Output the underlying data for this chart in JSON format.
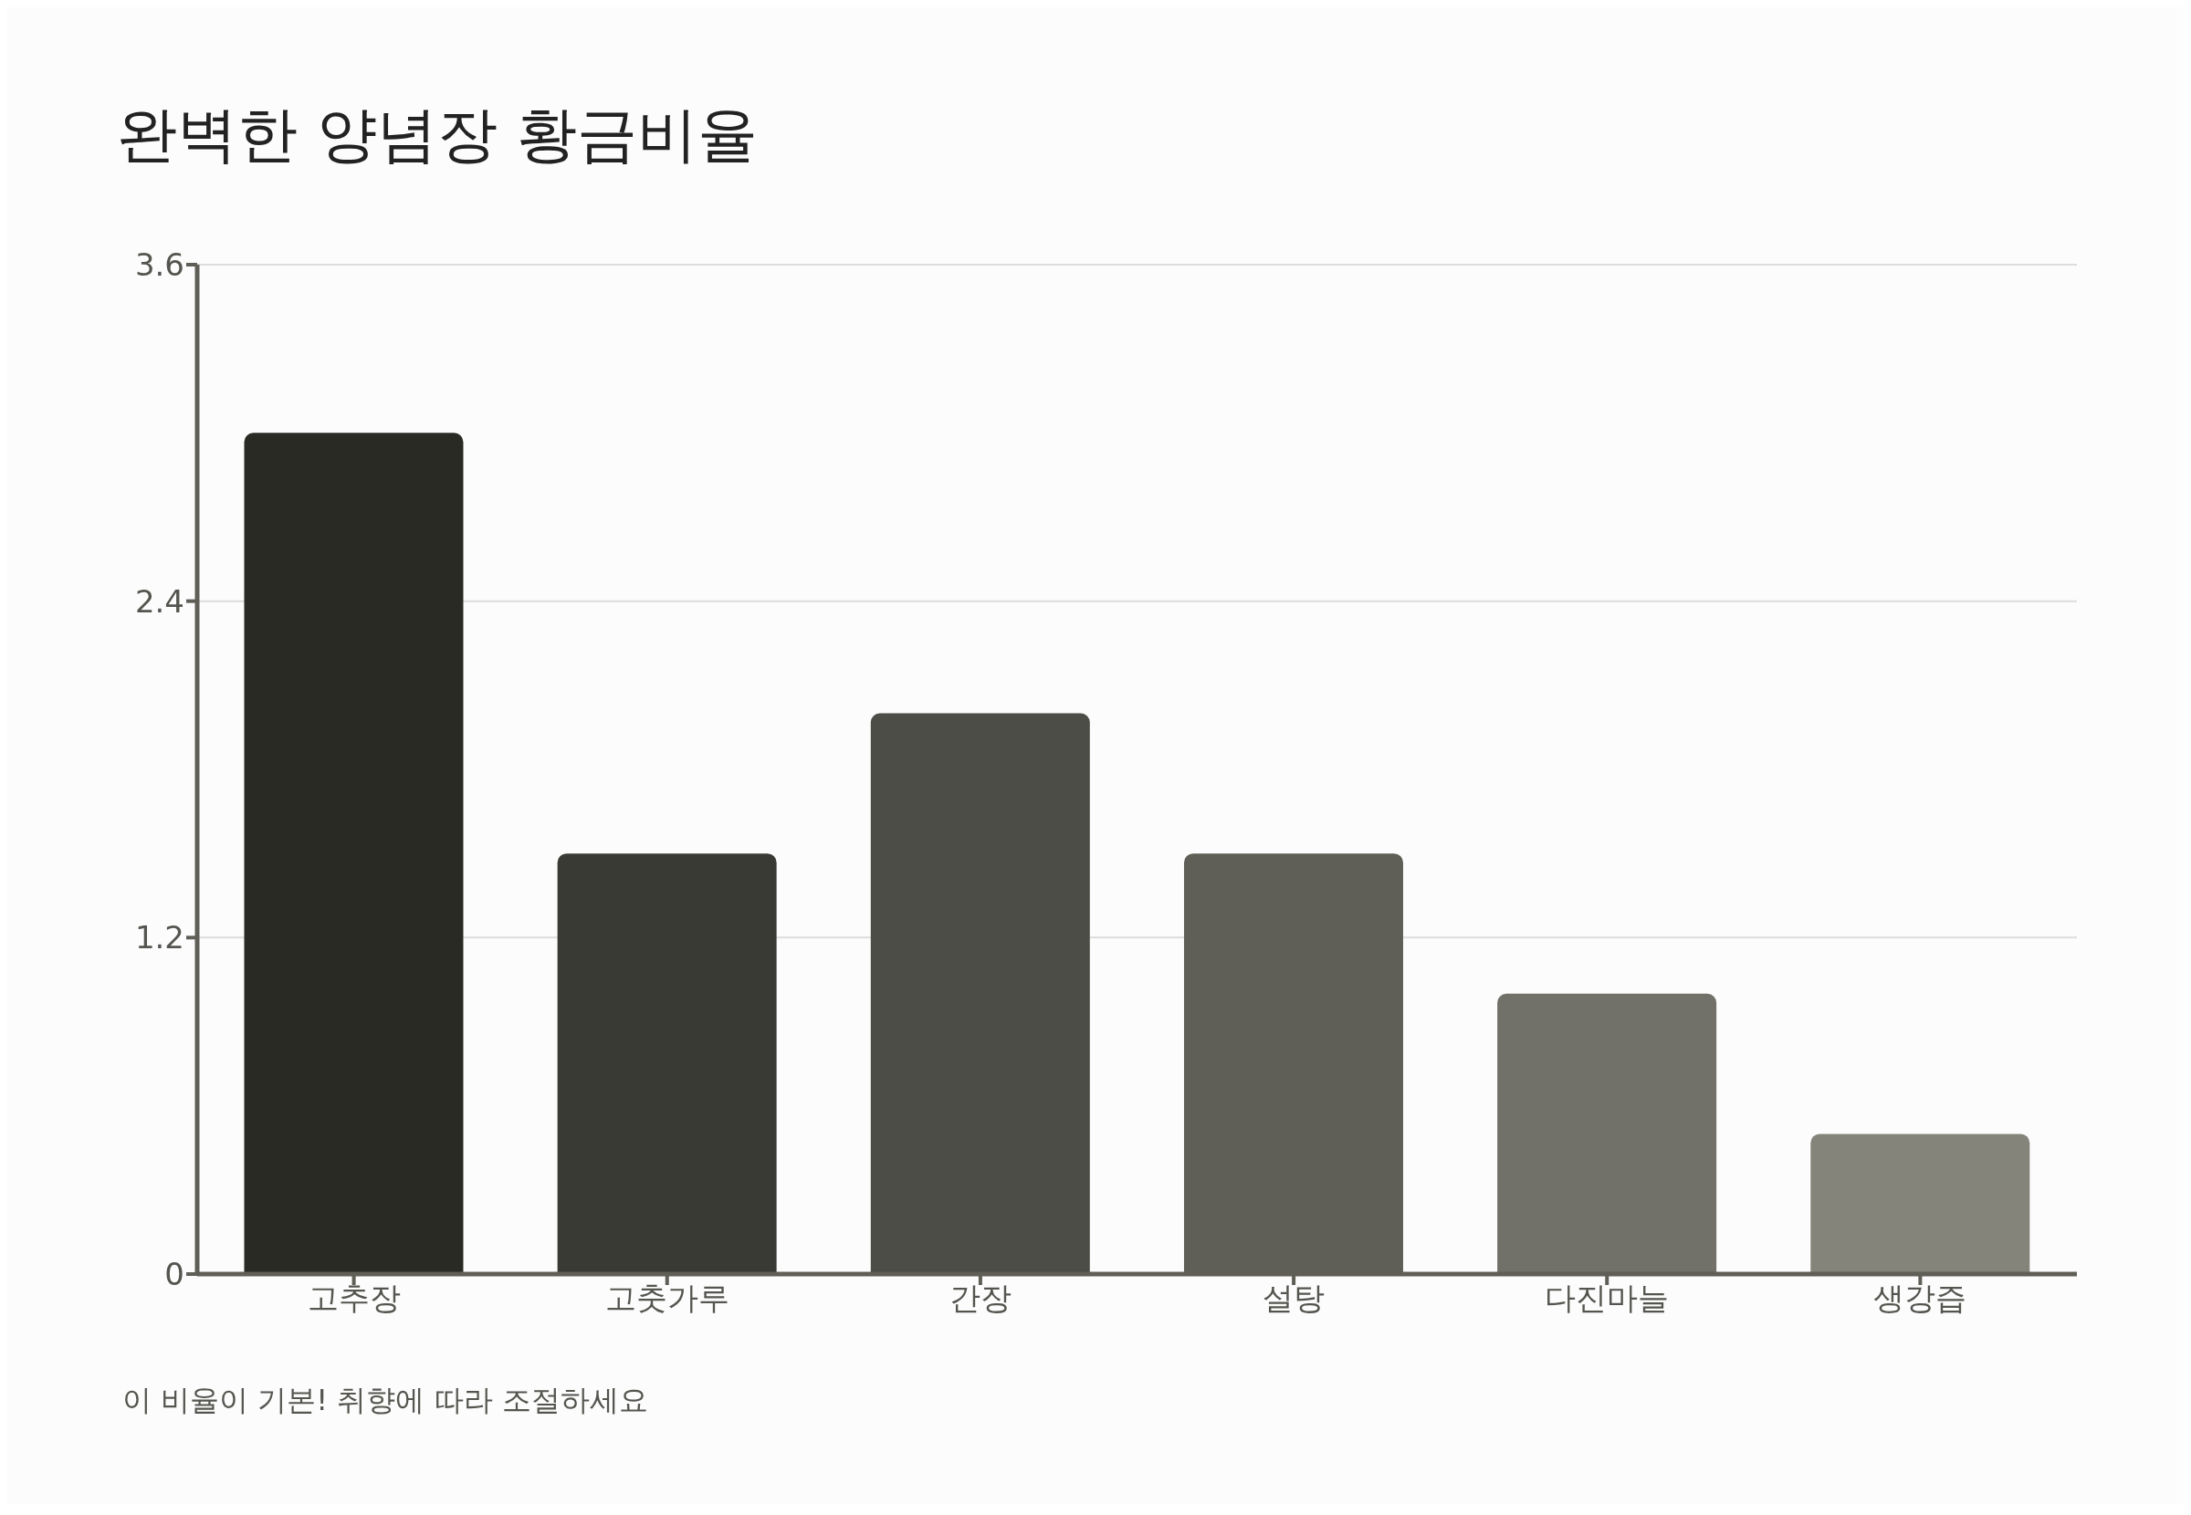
{
  "chart_data": {
    "type": "bar",
    "title": "완벽한 양념장 황금비율",
    "categories": [
      "고추장",
      "고춧가루",
      "간장",
      "설탕",
      "다진마늘",
      "생강즙"
    ],
    "values": [
      3,
      1.5,
      2,
      1.5,
      1,
      0.5
    ],
    "colors": [
      "#2a2a25",
      "#3a3a35",
      "#4d4d47",
      "#5f5f57",
      "#71716a",
      "#84847b"
    ],
    "ylim": [
      0,
      3.6
    ],
    "yticks": [
      0,
      1.2,
      2.4,
      3.6
    ],
    "grid": "y",
    "annotations": [
      "이 비율이 기본! 취향에 따라 조절하세요"
    ]
  }
}
